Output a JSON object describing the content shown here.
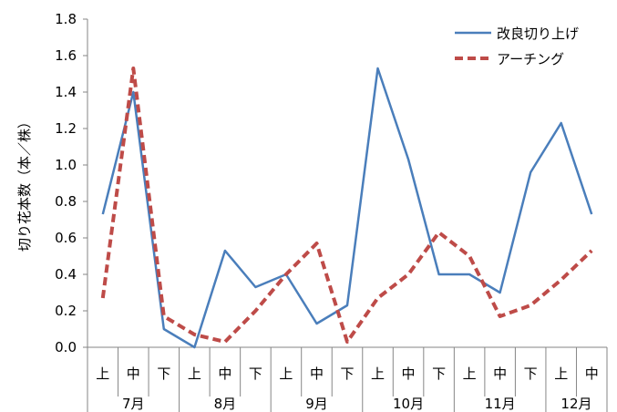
{
  "chart_data": {
    "type": "line",
    "ylabel": "切り花本数（本／株）",
    "ylim": [
      0,
      1.8
    ],
    "yticks": [
      "0.0",
      "0.2",
      "0.4",
      "0.6",
      "0.8",
      "1.0",
      "1.2",
      "1.4",
      "1.6",
      "1.8"
    ],
    "categories": [
      "上",
      "中",
      "下",
      "上",
      "中",
      "下",
      "上",
      "中",
      "下",
      "上",
      "中",
      "下",
      "上",
      "中",
      "下",
      "上",
      "中"
    ],
    "month_groups": [
      {
        "label": "7月",
        "span": 3
      },
      {
        "label": "8月",
        "span": 3
      },
      {
        "label": "9月",
        "span": 3
      },
      {
        "label": "10月",
        "span": 3
      },
      {
        "label": "11月",
        "span": 3
      },
      {
        "label": "12月",
        "span": 2
      }
    ],
    "series": [
      {
        "name": "改良切り上げ",
        "color": "#4a7ebb",
        "style": "solid",
        "values": [
          0.73,
          1.4,
          0.1,
          0.0,
          0.53,
          0.33,
          0.4,
          0.13,
          0.23,
          1.53,
          1.03,
          0.4,
          0.4,
          0.3,
          0.96,
          1.23,
          0.73
        ]
      },
      {
        "name": "アーチング",
        "color": "#be4b48",
        "style": "dashed",
        "values": [
          0.27,
          1.53,
          0.17,
          0.07,
          0.03,
          0.2,
          0.4,
          0.57,
          0.03,
          0.27,
          0.4,
          0.63,
          0.5,
          0.17,
          0.23,
          0.37,
          0.53
        ]
      }
    ],
    "legend_position": "top-right",
    "grid": false
  }
}
